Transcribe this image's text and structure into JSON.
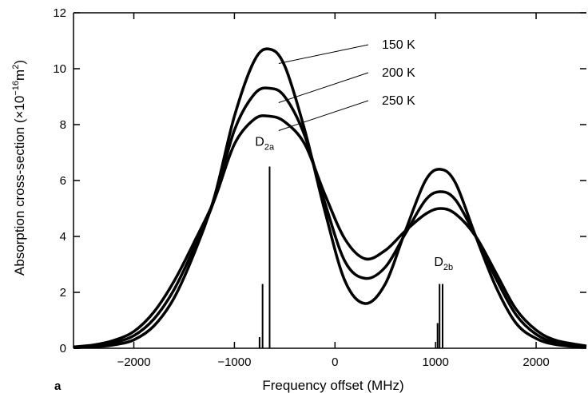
{
  "chart_data": {
    "type": "line",
    "panel_letter": "a",
    "xlabel": "Frequency offset (MHz)",
    "ylabel_main": "Absorption cross-section (×10",
    "ylabel_exp": "−16",
    "ylabel_unit": "m",
    "ylabel_unit_exp": "2",
    "ylabel_close": ")",
    "xlim": [
      -2600,
      2500
    ],
    "ylim": [
      0,
      12
    ],
    "xticks": [
      -2000,
      -1000,
      0,
      1000,
      2000
    ],
    "xtick_labels": [
      "−2000",
      "−1000",
      "0",
      "1000",
      "2000"
    ],
    "yticks": [
      0,
      2,
      4,
      6,
      8,
      10,
      12
    ],
    "ytick_labels": [
      "0",
      "2",
      "4",
      "6",
      "8",
      "10",
      "12"
    ],
    "series": [
      {
        "name": "150 K",
        "x": [
          -2600,
          -2400,
          -2200,
          -2000,
          -1800,
          -1600,
          -1400,
          -1200,
          -1000,
          -800,
          -650,
          -500,
          -300,
          -100,
          100,
          300,
          500,
          700,
          900,
          1050,
          1200,
          1400,
          1600,
          1800,
          2000,
          2200,
          2500
        ],
        "y": [
          0.02,
          0.05,
          0.12,
          0.3,
          0.8,
          1.8,
          3.4,
          5.4,
          8.3,
          10.3,
          10.7,
          10.1,
          7.8,
          4.9,
          2.4,
          1.6,
          2.3,
          4.2,
          6.0,
          6.4,
          5.9,
          4.0,
          2.2,
          0.9,
          0.35,
          0.13,
          0.03
        ]
      },
      {
        "name": "200 K",
        "x": [
          -2600,
          -2400,
          -2200,
          -2000,
          -1800,
          -1600,
          -1400,
          -1200,
          -1000,
          -800,
          -650,
          -500,
          -300,
          -100,
          100,
          300,
          500,
          700,
          900,
          1050,
          1200,
          1400,
          1600,
          1800,
          2000,
          2200,
          2500
        ],
        "y": [
          0.03,
          0.08,
          0.2,
          0.45,
          1.05,
          2.1,
          3.6,
          5.3,
          7.8,
          9.1,
          9.3,
          9.0,
          7.6,
          5.2,
          3.1,
          2.5,
          2.9,
          4.1,
          5.3,
          5.6,
          5.3,
          4.0,
          2.5,
          1.2,
          0.5,
          0.2,
          0.05
        ]
      },
      {
        "name": "250 K",
        "x": [
          -2600,
          -2400,
          -2200,
          -2000,
          -1800,
          -1600,
          -1400,
          -1200,
          -1000,
          -800,
          -650,
          -500,
          -300,
          -100,
          100,
          300,
          500,
          700,
          900,
          1050,
          1200,
          1400,
          1600,
          1800,
          2000,
          2200,
          2500
        ],
        "y": [
          0.05,
          0.12,
          0.28,
          0.6,
          1.3,
          2.4,
          3.8,
          5.3,
          7.3,
          8.2,
          8.3,
          8.1,
          7.3,
          5.5,
          3.9,
          3.2,
          3.5,
          4.2,
          4.8,
          5.0,
          4.8,
          4.0,
          2.7,
          1.4,
          0.65,
          0.28,
          0.08
        ]
      }
    ],
    "sticks": [
      {
        "x": -750,
        "y": 0.4
      },
      {
        "x": -720,
        "y": 2.3
      },
      {
        "x": -650,
        "y": 6.5
      },
      {
        "x": 1020,
        "y": 0.9
      },
      {
        "x": 1040,
        "y": 2.3
      },
      {
        "x": 1070,
        "y": 2.3
      }
    ],
    "peak_labels": [
      {
        "main": "D",
        "sub": "2a",
        "x": -700,
        "y": 6.9
      },
      {
        "main": "D",
        "sub": "2b",
        "x": 1080,
        "y": 2.6
      }
    ],
    "grid": false
  },
  "line_color": "#000000"
}
